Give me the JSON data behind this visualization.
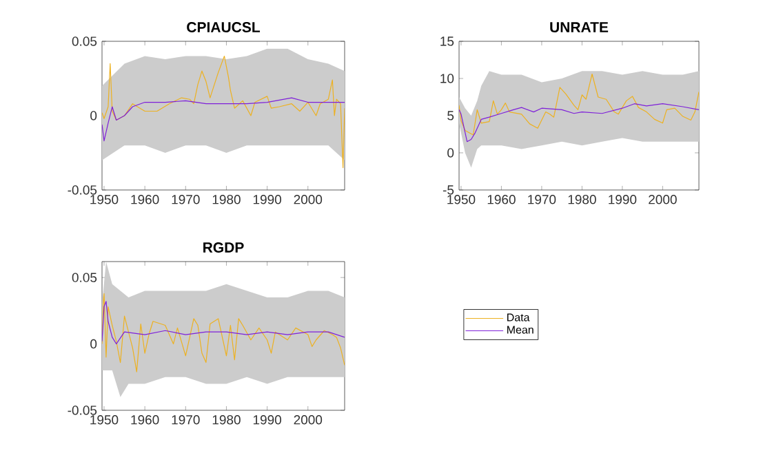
{
  "chart_data": [
    {
      "type": "line",
      "title": "CPIAUCSL",
      "xlim": [
        1949.5,
        2009
      ],
      "xticks": [
        1950,
        1960,
        1970,
        1980,
        1990,
        2000
      ],
      "ylim": [
        -0.05,
        0.05
      ],
      "yticks": [
        -0.05,
        0,
        0.05
      ],
      "series": [
        {
          "color": "#cccccc",
          "x": [
            1949.5,
            1955,
            1960,
            1965,
            1970,
            1975,
            1980,
            1985,
            1990,
            1995,
            2000,
            2005,
            2009
          ],
          "values": [
            null,
            null,
            null,
            null,
            null,
            null,
            null,
            null,
            null,
            null,
            null,
            null,
            null
          ],
          "lower": [
            -0.03,
            -0.02,
            -0.02,
            -0.025,
            -0.02,
            -0.02,
            -0.025,
            -0.02,
            -0.02,
            -0.02,
            -0.02,
            -0.02,
            -0.03
          ],
          "upper": [
            0.02,
            0.035,
            0.04,
            0.038,
            0.04,
            0.04,
            0.038,
            0.04,
            0.045,
            0.045,
            0.038,
            0.035,
            0.03
          ]
        },
        {
          "color": "#edb120",
          "x": [
            1949.5,
            1950,
            1951,
            1951.5,
            1952,
            1953,
            1955,
            1957,
            1960,
            1963,
            1966,
            1969,
            1971,
            1972,
            1973,
            1974,
            1975,
            1976,
            1978,
            1979.5,
            1980.5,
            1981,
            1982,
            1984,
            1986,
            1987,
            1990,
            1991,
            1993,
            1996,
            1998,
            2000,
            2002,
            2003,
            2005,
            2006,
            2006.5,
            2007,
            2008,
            2008.6,
            2009
          ],
          "values": [
            0.002,
            -0.002,
            0.006,
            0.035,
            0.003,
            -0.003,
            0,
            0.008,
            0.003,
            0.003,
            0.008,
            0.012,
            0.011,
            0.008,
            0.021,
            0.03,
            0.023,
            0.012,
            0.029,
            0.04,
            0.026,
            0.017,
            0.005,
            0.01,
            0,
            0.009,
            0.013,
            0.005,
            0.006,
            0.008,
            0.003,
            0.009,
            0,
            0.008,
            0.011,
            0.024,
            0,
            0.011,
            0.008,
            -0.035,
            0.005
          ]
        },
        {
          "color": "#7e1fd9",
          "x": [
            1949.5,
            1950,
            1951,
            1952,
            1953,
            1955,
            1957,
            1960,
            1965,
            1970,
            1975,
            1980,
            1985,
            1990,
            1996,
            2000,
            2005,
            2009
          ],
          "values": [
            -0.006,
            -0.017,
            -0.005,
            0.006,
            -0.003,
            0,
            0.006,
            0.009,
            0.009,
            0.01,
            0.008,
            0.008,
            0.008,
            0.009,
            0.012,
            0.009,
            0.009,
            0.009
          ]
        }
      ]
    },
    {
      "type": "line",
      "title": "UNRATE",
      "xlim": [
        1949.5,
        2009
      ],
      "xticks": [
        1950,
        1960,
        1970,
        1980,
        1990,
        2000
      ],
      "ylim": [
        -5,
        15
      ],
      "yticks": [
        -5,
        0,
        5,
        10,
        15
      ],
      "series": [
        {
          "color": "#cccccc",
          "x": [
            1949.5,
            1951,
            1952.5,
            1954,
            1955,
            1957,
            1960,
            1965,
            1970,
            1975,
            1980,
            1985,
            1990,
            1995,
            2000,
            2005,
            2009
          ],
          "values": [
            null,
            null,
            null,
            null,
            null,
            null,
            null,
            null,
            null,
            null,
            null,
            null,
            null,
            null,
            null,
            null,
            null
          ],
          "lower": [
            4,
            0,
            -2,
            0.5,
            1,
            1,
            1,
            0.5,
            1,
            1.5,
            1,
            1.5,
            2,
            1.5,
            1.5,
            1.5,
            1.5
          ],
          "upper": [
            7.5,
            6,
            5,
            7,
            9,
            11,
            10.5,
            10.5,
            9.5,
            10,
            11,
            11,
            10.5,
            11,
            10.5,
            10.5,
            11
          ]
        },
        {
          "color": "#edb120",
          "x": [
            1949.5,
            1950,
            1951,
            1952,
            1953,
            1954,
            1955,
            1957,
            1958,
            1959,
            1960,
            1961,
            1962,
            1965,
            1967,
            1969,
            1971,
            1972,
            1973,
            1974.5,
            1976,
            1978,
            1979,
            1980,
            1981,
            1982.5,
            1984,
            1986,
            1988,
            1989,
            1991,
            1992.5,
            1994,
            1996,
            1998,
            2000,
            2001,
            2003,
            2005,
            2007,
            2008,
            2009
          ],
          "values": [
            6.4,
            4.3,
            3,
            2.7,
            2.4,
            5.8,
            4,
            4.2,
            7,
            5.2,
            5.8,
            6.7,
            5.5,
            5.2,
            3.9,
            3.3,
            5.5,
            5.2,
            4.8,
            8.8,
            7.9,
            6.4,
            5.8,
            7.8,
            7.2,
            10.6,
            7.5,
            7.2,
            5.5,
            5.2,
            7,
            7.6,
            6.1,
            5.5,
            4.5,
            4,
            5.8,
            6,
            4.9,
            4.4,
            5.5,
            8.2
          ]
        },
        {
          "color": "#7e1fd9",
          "x": [
            1949.5,
            1950,
            1951.5,
            1952.5,
            1953.5,
            1955,
            1957,
            1960,
            1963,
            1965,
            1968,
            1970,
            1975,
            1978,
            1980,
            1985,
            1990,
            1993,
            1996,
            2000,
            2005,
            2009
          ],
          "values": [
            5.8,
            5.2,
            1.5,
            1.8,
            2.7,
            4.5,
            4.8,
            5.3,
            5.8,
            6.1,
            5.5,
            6,
            5.8,
            5.3,
            5.5,
            5.3,
            6,
            6.6,
            6.3,
            6.6,
            6.2,
            5.8
          ]
        }
      ]
    },
    {
      "type": "line",
      "title": "RGDP",
      "xlim": [
        1949.5,
        2009
      ],
      "xticks": [
        1950,
        1960,
        1970,
        1980,
        1990,
        2000
      ],
      "ylim": [
        -0.05,
        0.062
      ],
      "yticks": [
        -0.05,
        0,
        0.05
      ],
      "legend": "right",
      "series": [
        {
          "color": "#cccccc",
          "x": [
            1949.5,
            1950.5,
            1952,
            1954,
            1956,
            1960,
            1965,
            1970,
            1975,
            1980,
            1985,
            1990,
            1995,
            2000,
            2005,
            2009
          ],
          "values": [
            null,
            null,
            null,
            null,
            null,
            null,
            null,
            null,
            null,
            null,
            null,
            null,
            null,
            null,
            null,
            null
          ],
          "lower": [
            -0.02,
            -0.02,
            -0.02,
            -0.04,
            -0.03,
            -0.03,
            -0.025,
            -0.025,
            -0.03,
            -0.03,
            -0.025,
            -0.03,
            -0.025,
            -0.025,
            -0.025,
            -0.025
          ],
          "upper": [
            0.03,
            0.062,
            0.045,
            0.04,
            0.035,
            0.04,
            0.04,
            0.04,
            0.04,
            0.045,
            0.04,
            0.035,
            0.035,
            0.04,
            0.04,
            0.035
          ]
        },
        {
          "name": "Data",
          "color": "#edb120",
          "x": [
            1949.5,
            1949.8,
            1950,
            1950.5,
            1951,
            1952,
            1953,
            1954,
            1955,
            1957,
            1958,
            1959,
            1960,
            1961,
            1962,
            1965,
            1967,
            1968,
            1970,
            1972,
            1973,
            1974,
            1975,
            1976,
            1978,
            1979,
            1980,
            1981,
            1982,
            1983,
            1984,
            1986,
            1988,
            1990,
            1991,
            1992,
            1995,
            1997,
            2000,
            2001,
            2002,
            2004,
            2006,
            2007,
            2008,
            2009
          ],
          "values": [
            0,
            0.031,
            0.038,
            -0.01,
            0.028,
            0.014,
            0.002,
            -0.014,
            0.021,
            -0.003,
            -0.021,
            0.015,
            -0.007,
            0.007,
            0.017,
            0.014,
            0,
            0.012,
            -0.009,
            0.019,
            0.014,
            -0.007,
            -0.014,
            0.015,
            0.019,
            0.005,
            -0.009,
            0.014,
            -0.012,
            0.019,
            0.014,
            0.003,
            0.012,
            0.003,
            -0.007,
            0.009,
            0.003,
            0.012,
            0.007,
            -0.002,
            0.003,
            0.01,
            0.007,
            0.005,
            -0.003,
            -0.016
          ]
        },
        {
          "name": "Mean",
          "color": "#7e1fd9",
          "x": [
            1949.5,
            1950,
            1950.5,
            1951,
            1952,
            1953,
            1955,
            1960,
            1965,
            1970,
            1975,
            1980,
            1985,
            1990,
            1995,
            2000,
            2005,
            2009
          ],
          "values": [
            0.002,
            0.028,
            0.032,
            0.017,
            0.005,
            0,
            0.009,
            0.007,
            0.01,
            0.007,
            0.009,
            0.009,
            0.007,
            0.009,
            0.007,
            0.009,
            0.009,
            0.005
          ]
        }
      ]
    }
  ]
}
